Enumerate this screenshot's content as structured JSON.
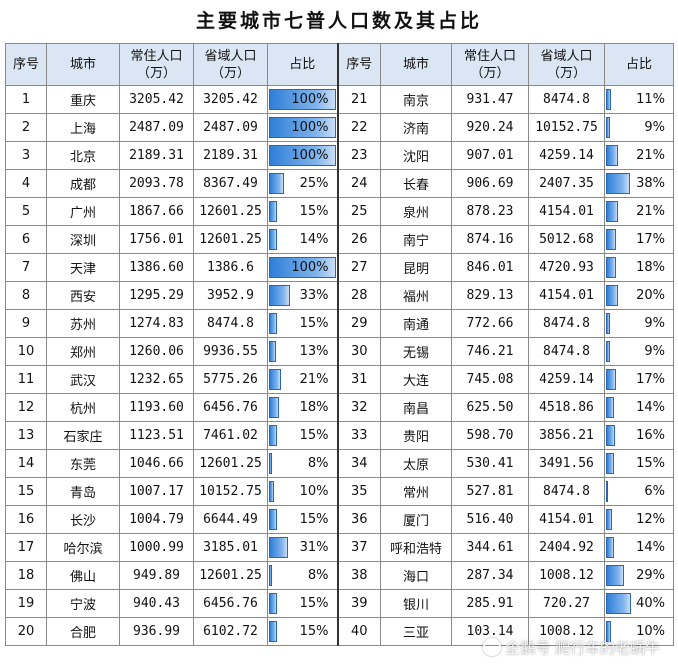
{
  "title": "主要城市七普人口数及其占比",
  "headers": {
    "seq": "序号",
    "city": "城市",
    "pop": "常住人口\n（万）",
    "prov": "省域人口\n（万）",
    "ratio": "占比"
  },
  "left_rows": [
    {
      "seq": "1",
      "city": "重庆",
      "pop": "3205.42",
      "prov": "3205.42",
      "ratio": "100%",
      "ratio_value": 100
    },
    {
      "seq": "2",
      "city": "上海",
      "pop": "2487.09",
      "prov": "2487.09",
      "ratio": "100%",
      "ratio_value": 100
    },
    {
      "seq": "3",
      "city": "北京",
      "pop": "2189.31",
      "prov": "2189.31",
      "ratio": "100%",
      "ratio_value": 100
    },
    {
      "seq": "4",
      "city": "成都",
      "pop": "2093.78",
      "prov": "8367.49",
      "ratio": "25%",
      "ratio_value": 25
    },
    {
      "seq": "5",
      "city": "广州",
      "pop": "1867.66",
      "prov": "12601.25",
      "ratio": "15%",
      "ratio_value": 15
    },
    {
      "seq": "6",
      "city": "深圳",
      "pop": "1756.01",
      "prov": "12601.25",
      "ratio": "14%",
      "ratio_value": 14
    },
    {
      "seq": "7",
      "city": "天津",
      "pop": "1386.60",
      "prov": "1386.6",
      "ratio": "100%",
      "ratio_value": 100
    },
    {
      "seq": "8",
      "city": "西安",
      "pop": "1295.29",
      "prov": "3952.9",
      "ratio": "33%",
      "ratio_value": 33
    },
    {
      "seq": "9",
      "city": "苏州",
      "pop": "1274.83",
      "prov": "8474.8",
      "ratio": "15%",
      "ratio_value": 15
    },
    {
      "seq": "10",
      "city": "郑州",
      "pop": "1260.06",
      "prov": "9936.55",
      "ratio": "13%",
      "ratio_value": 13
    },
    {
      "seq": "11",
      "city": "武汉",
      "pop": "1232.65",
      "prov": "5775.26",
      "ratio": "21%",
      "ratio_value": 21
    },
    {
      "seq": "12",
      "city": "杭州",
      "pop": "1193.60",
      "prov": "6456.76",
      "ratio": "18%",
      "ratio_value": 18
    },
    {
      "seq": "13",
      "city": "石家庄",
      "pop": "1123.51",
      "prov": "7461.02",
      "ratio": "15%",
      "ratio_value": 15
    },
    {
      "seq": "14",
      "city": "东莞",
      "pop": "1046.66",
      "prov": "12601.25",
      "ratio": "8%",
      "ratio_value": 8
    },
    {
      "seq": "15",
      "city": "青岛",
      "pop": "1007.17",
      "prov": "10152.75",
      "ratio": "10%",
      "ratio_value": 10
    },
    {
      "seq": "16",
      "city": "长沙",
      "pop": "1004.79",
      "prov": "6644.49",
      "ratio": "15%",
      "ratio_value": 15
    },
    {
      "seq": "17",
      "city": "哈尔滨",
      "pop": "1000.99",
      "prov": "3185.01",
      "ratio": "31%",
      "ratio_value": 31
    },
    {
      "seq": "18",
      "city": "佛山",
      "pop": "949.89",
      "prov": "12601.25",
      "ratio": "8%",
      "ratio_value": 8
    },
    {
      "seq": "19",
      "city": "宁波",
      "pop": "940.43",
      "prov": "6456.76",
      "ratio": "15%",
      "ratio_value": 15
    },
    {
      "seq": "20",
      "city": "合肥",
      "pop": "936.99",
      "prov": "6102.72",
      "ratio": "15%",
      "ratio_value": 15
    }
  ],
  "right_rows": [
    {
      "seq": "21",
      "city": "南京",
      "pop": "931.47",
      "prov": "8474.8",
      "ratio": "11%",
      "ratio_value": 11
    },
    {
      "seq": "22",
      "city": "济南",
      "pop": "920.24",
      "prov": "10152.75",
      "ratio": "9%",
      "ratio_value": 9
    },
    {
      "seq": "23",
      "city": "沈阳",
      "pop": "907.01",
      "prov": "4259.14",
      "ratio": "21%",
      "ratio_value": 21
    },
    {
      "seq": "24",
      "city": "长春",
      "pop": "906.69",
      "prov": "2407.35",
      "ratio": "38%",
      "ratio_value": 38
    },
    {
      "seq": "25",
      "city": "泉州",
      "pop": "878.23",
      "prov": "4154.01",
      "ratio": "21%",
      "ratio_value": 21
    },
    {
      "seq": "26",
      "city": "南宁",
      "pop": "874.16",
      "prov": "5012.68",
      "ratio": "17%",
      "ratio_value": 17
    },
    {
      "seq": "27",
      "city": "昆明",
      "pop": "846.01",
      "prov": "4720.93",
      "ratio": "18%",
      "ratio_value": 18
    },
    {
      "seq": "28",
      "city": "福州",
      "pop": "829.13",
      "prov": "4154.01",
      "ratio": "20%",
      "ratio_value": 20
    },
    {
      "seq": "29",
      "city": "南通",
      "pop": "772.66",
      "prov": "8474.8",
      "ratio": "9%",
      "ratio_value": 9
    },
    {
      "seq": "30",
      "city": "无锡",
      "pop": "746.21",
      "prov": "8474.8",
      "ratio": "9%",
      "ratio_value": 9
    },
    {
      "seq": "31",
      "city": "大连",
      "pop": "745.08",
      "prov": "4259.14",
      "ratio": "17%",
      "ratio_value": 17
    },
    {
      "seq": "32",
      "city": "南昌",
      "pop": "625.50",
      "prov": "4518.86",
      "ratio": "14%",
      "ratio_value": 14
    },
    {
      "seq": "33",
      "city": "贵阳",
      "pop": "598.70",
      "prov": "3856.21",
      "ratio": "16%",
      "ratio_value": 16
    },
    {
      "seq": "34",
      "city": "太原",
      "pop": "530.41",
      "prov": "3491.56",
      "ratio": "15%",
      "ratio_value": 15
    },
    {
      "seq": "35",
      "city": "常州",
      "pop": "527.81",
      "prov": "8474.8",
      "ratio": "6%",
      "ratio_value": 6
    },
    {
      "seq": "36",
      "city": "厦门",
      "pop": "516.40",
      "prov": "4154.01",
      "ratio": "12%",
      "ratio_value": 12
    },
    {
      "seq": "37",
      "city": "呼和浩特",
      "pop": "344.61",
      "prov": "2404.92",
      "ratio": "14%",
      "ratio_value": 14
    },
    {
      "seq": "38",
      "city": "海口",
      "pop": "287.34",
      "prov": "1008.12",
      "ratio": "29%",
      "ratio_value": 29
    },
    {
      "seq": "39",
      "city": "银川",
      "pop": "285.91",
      "prov": "720.27",
      "ratio": "40%",
      "ratio_value": 40
    },
    {
      "seq": "40",
      "city": "三亚",
      "pop": "103.14",
      "prov": "1008.12",
      "ratio": "10%",
      "ratio_value": 10
    }
  ],
  "bar_color": "#2f7fd8",
  "header_bg": "#dbe6f4",
  "watermark": "企鹅号 爬行车的老蜗牛"
}
